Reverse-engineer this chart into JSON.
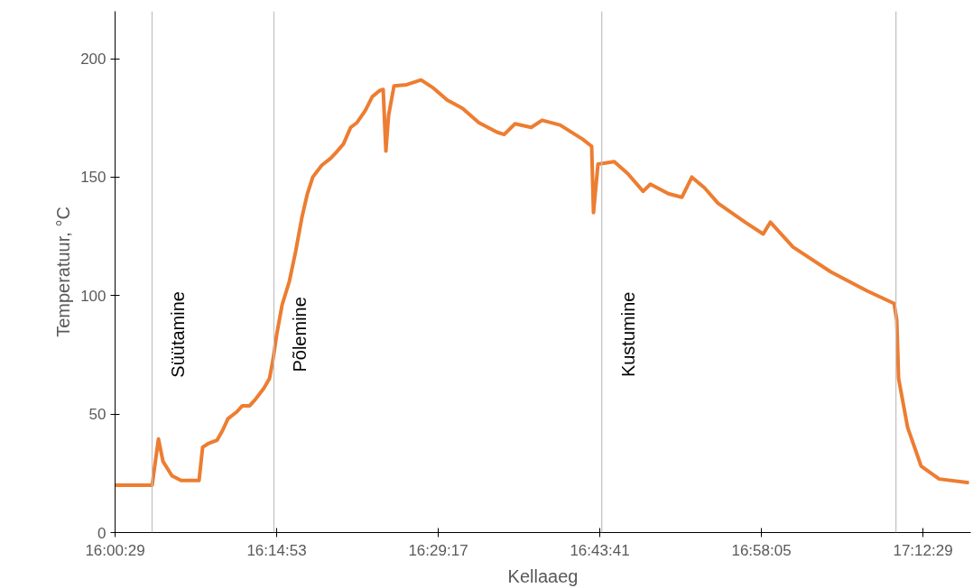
{
  "chart_data": {
    "type": "line",
    "xlabel": "Kellaaeg",
    "ylabel": "Temperatuur, °C",
    "xlim": [
      16.008056,
      17.2791
    ],
    "ylim": [
      0,
      220
    ],
    "xticks": [
      {
        "value": 16.008056,
        "label": "16:00:29"
      },
      {
        "value": 16.248056,
        "label": "16:14:53"
      },
      {
        "value": 16.488056,
        "label": "16:29:17"
      },
      {
        "value": 16.728056,
        "label": "16:43:41"
      },
      {
        "value": 16.968056,
        "label": "16:58:05"
      },
      {
        "value": 17.208056,
        "label": "17:12:29"
      }
    ],
    "yticks": [
      0,
      50,
      100,
      150,
      200
    ],
    "grid": false,
    "marker": "none",
    "line_style": "solid",
    "ref_lines": [
      {
        "axis": "x",
        "value": 16.063,
        "label": "Süütamine",
        "color": "#bfbfbf"
      },
      {
        "axis": "x",
        "value": 16.244,
        "label": "Põlemine",
        "color": "#bfbfbf"
      },
      {
        "axis": "x",
        "value": 16.731,
        "label": "Kustumine",
        "color": "#bfbfbf"
      },
      {
        "axis": "x",
        "value": 17.168,
        "label": null,
        "color": "#bfbfbf"
      }
    ],
    "series": [
      {
        "color": "#ed7d31",
        "x": [
          16.0081,
          16.0631,
          16.0725,
          16.0792,
          16.0925,
          16.106,
          16.1328,
          16.1381,
          16.1462,
          16.1596,
          16.1676,
          16.1757,
          16.1891,
          16.1971,
          16.2079,
          16.2159,
          16.2293,
          16.2374,
          16.2427,
          16.2481,
          16.2561,
          16.2669,
          16.2762,
          16.2856,
          16.2937,
          16.3017,
          16.3151,
          16.3285,
          16.3366,
          16.3473,
          16.358,
          16.3674,
          16.3795,
          16.3902,
          16.4009,
          16.4063,
          16.4103,
          16.4143,
          16.4224,
          16.4411,
          16.4626,
          16.4814,
          16.5015,
          16.5243,
          16.5484,
          16.5752,
          16.586,
          16.6021,
          16.6262,
          16.6423,
          16.6691,
          16.7026,
          16.716,
          16.7187,
          16.7254,
          16.7495,
          16.7696,
          16.7924,
          16.8032,
          16.83,
          16.8501,
          16.8648,
          16.8836,
          16.9037,
          16.9439,
          16.9708,
          16.9815,
          17.015,
          17.0713,
          17.125,
          17.1652,
          17.1692,
          17.1719,
          17.1853,
          17.2054,
          17.2322,
          17.2765
        ],
        "values": [
          20,
          20,
          39.5,
          30,
          24,
          22,
          22,
          36,
          37.5,
          39,
          43,
          48,
          51,
          53.5,
          53.5,
          56,
          61,
          65,
          73,
          83.5,
          96,
          106,
          118.5,
          133,
          143,
          150,
          155,
          158,
          160.5,
          164,
          171,
          173,
          178,
          184,
          186.5,
          187,
          161,
          176,
          188.5,
          189,
          191,
          187.5,
          182.5,
          179,
          173,
          169,
          168,
          172.5,
          171,
          174,
          172,
          166,
          163,
          135,
          155.5,
          156.5,
          151.5,
          144,
          147,
          143,
          141.5,
          150,
          145.5,
          139,
          131,
          126,
          131,
          120.5,
          110,
          102,
          96.7,
          89.7,
          65,
          44.4,
          28,
          22.6,
          21
        ]
      }
    ]
  }
}
